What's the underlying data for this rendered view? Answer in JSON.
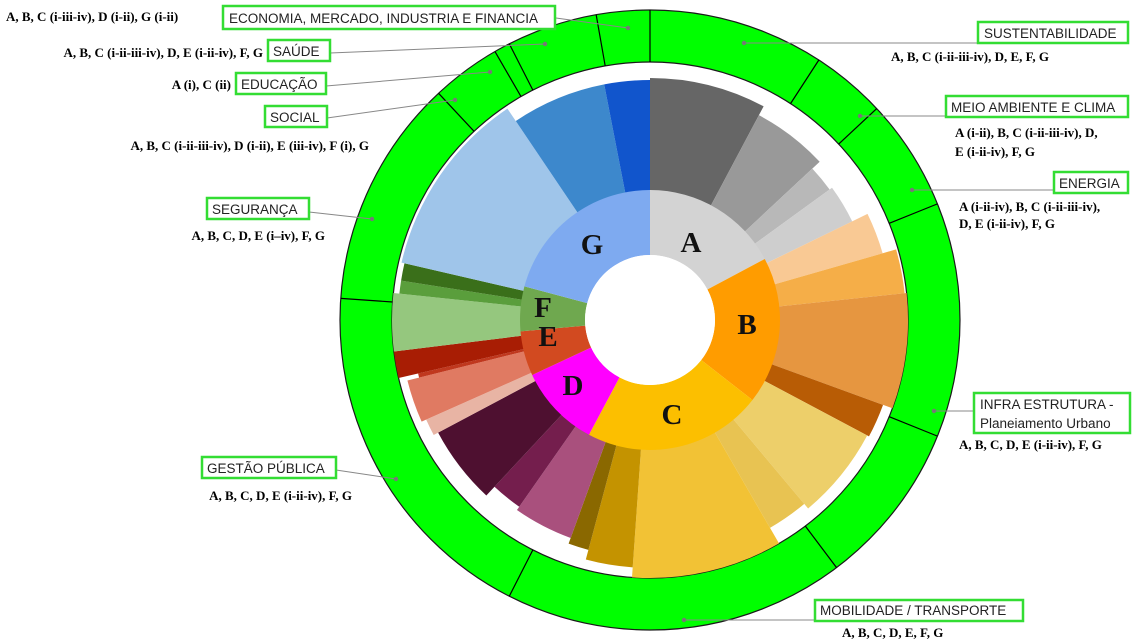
{
  "colors": {
    "outer_ring": "#00ff00",
    "label_border": "#33dd33",
    "hub": "#ffffff"
  },
  "groups": [
    {
      "letter": "A",
      "color": "#d3d3d3"
    },
    {
      "letter": "B",
      "color": "#ff9c00"
    },
    {
      "letter": "C",
      "color": "#fcbf00"
    },
    {
      "letter": "D",
      "color": "#ff00ff"
    },
    {
      "letter": "E",
      "color": "#d24a20"
    },
    {
      "letter": "F",
      "color": "#6fa84f"
    },
    {
      "letter": "G",
      "color": "#7eaaf0"
    }
  ],
  "areas": [
    {
      "name": "ECONOMIA, MERCADO, INDUSTRIA E FINANCIA",
      "groups": "A, B, C (i-iii-iv), D (i-ii), G (i-ii)"
    },
    {
      "name": "SAÚDE",
      "groups": "A, B, C (i-ii-iii-iv), D, E (i-ii-iv), F, G"
    },
    {
      "name": "EDUCAÇÃO",
      "groups": "A (i), C (ii)"
    },
    {
      "name": "SOCIAL",
      "groups": "A, B, C (i-ii-iii-iv), D (i-ii), E (iii-iv), F (i), G"
    },
    {
      "name": "SEGURANÇA",
      "groups": "A, B, C, D, E (i–iv), F, G"
    },
    {
      "name": "GESTÃO PÚBLICA",
      "groups": "A, B, C, D, E (i-ii-iv), F, G"
    },
    {
      "name": "SUSTENTABILIDADE",
      "groups": "A, B, C (i-ii-iii-iv), D, E, F, G"
    },
    {
      "name": "MEIO AMBIENTE E CLIMA",
      "groups": [
        "A (i-ii), B, C (i-ii-iii-iv), D,",
        "E (i-ii-iv), F, G"
      ]
    },
    {
      "name": "ENERGIA",
      "groups": [
        "A (i-ii-iv), B, C (i-ii-iii-iv),",
        "D, E (i-ii-iv), F, G"
      ]
    },
    {
      "name": [
        "INFRA ESTRUTURA -",
        "Planeiamento Urbano"
      ],
      "groups": "A, B, C, D, E (i-ii-iv), F, G"
    },
    {
      "name": "MOBILIDADE / TRANSPORTE",
      "groups": "A, B, C, D, E, F, G"
    }
  ]
}
